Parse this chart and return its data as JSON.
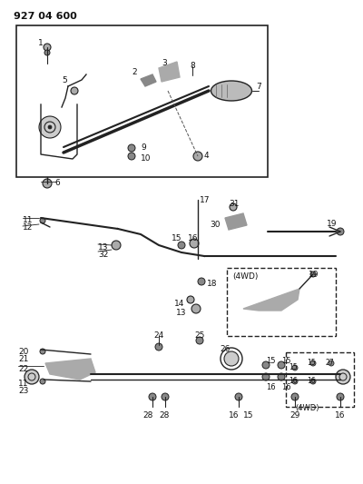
{
  "title": "927 04 600",
  "bg_color": "#ffffff",
  "line_color": "#222222",
  "text_color": "#111111"
}
